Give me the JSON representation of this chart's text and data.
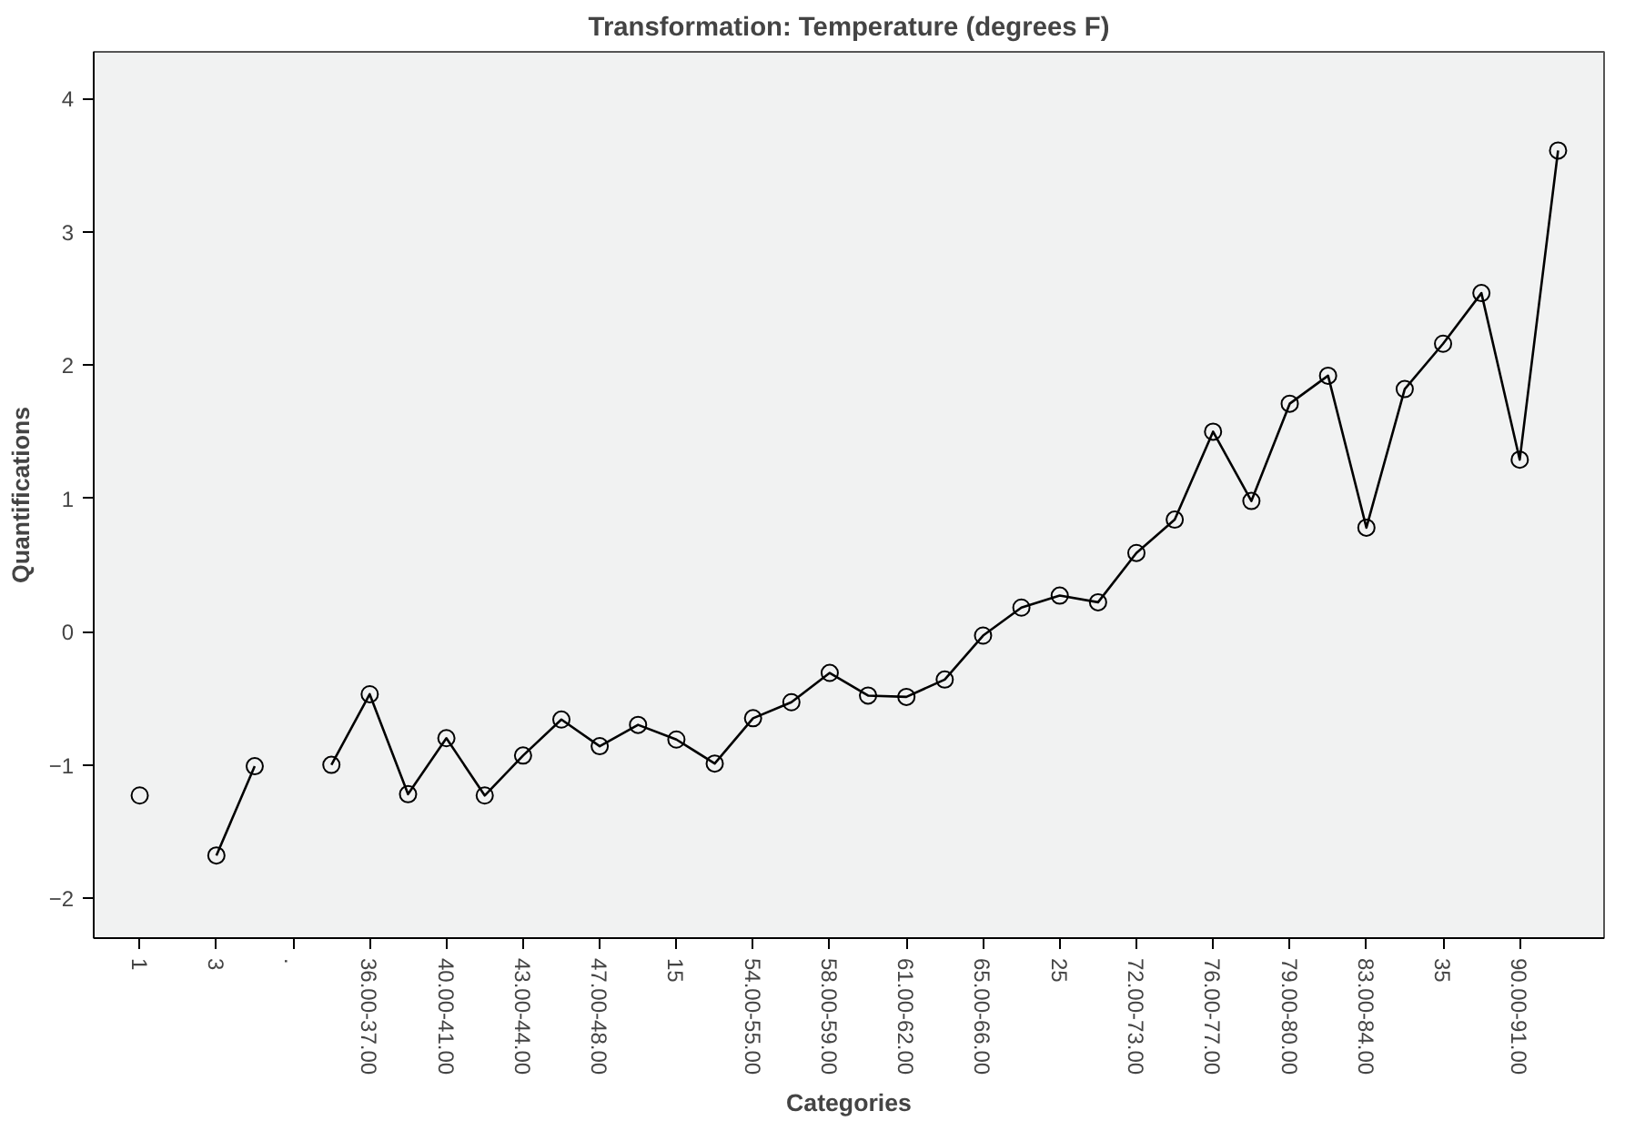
{
  "chart_data": {
    "type": "line",
    "title": "Transformation: Temperature (degrees F)",
    "xlabel": "Categories",
    "ylabel": "Quantifications",
    "categories": [
      "1",
      null,
      "3",
      null,
      ".",
      null,
      "36.00-37.00",
      null,
      "40.00-41.00",
      null,
      "43.00-44.00",
      null,
      "47.00-48.00",
      null,
      "15",
      null,
      "54.00-55.00",
      null,
      "58.00-59.00",
      null,
      "61.00-62.00",
      null,
      "65.00-66.00",
      null,
      "25",
      null,
      "72.00-73.00",
      null,
      "76.00-77.00",
      null,
      "79.00-80.00",
      null,
      "83.00-84.00",
      null,
      "35",
      null,
      "90.00-91.00",
      null
    ],
    "series": [
      {
        "color": "#000000",
        "values": [
          -1.23,
          null,
          -1.68,
          -1.01,
          null,
          -1.0,
          -0.47,
          -1.22,
          -0.8,
          -1.23,
          -0.93,
          -0.66,
          -0.86,
          -0.7,
          -0.81,
          -0.99,
          -0.65,
          -0.53,
          -0.31,
          -0.48,
          -0.49,
          -0.36,
          -0.03,
          0.18,
          0.27,
          0.22,
          0.59,
          0.84,
          1.5,
          0.98,
          1.71,
          1.92,
          0.78,
          1.82,
          2.16,
          2.54,
          1.29,
          3.61
        ]
      }
    ],
    "ylim": [
      -2.3,
      4.35
    ],
    "yticks": [
      -2,
      -1,
      0,
      1,
      2,
      3,
      4
    ],
    "marker": "circle",
    "line_style": "solid"
  }
}
